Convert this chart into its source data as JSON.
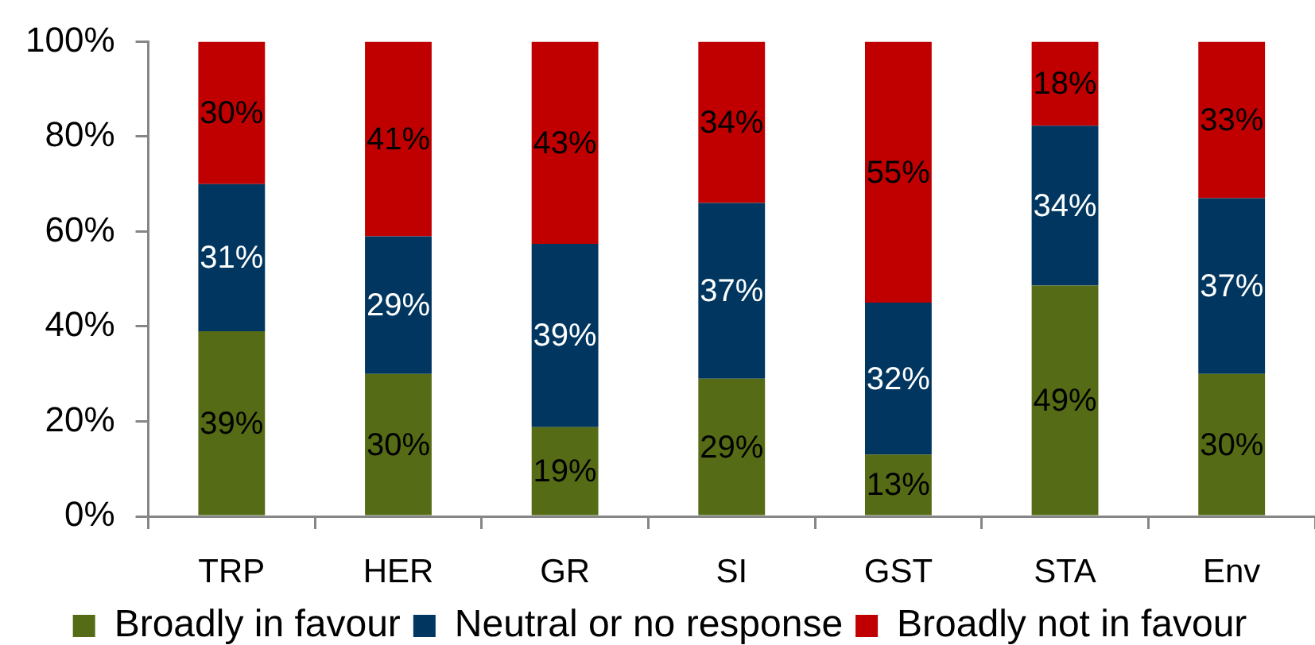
{
  "chart_data": {
    "type": "bar",
    "stacked": true,
    "categories": [
      "TRP",
      "HER",
      "GR",
      "SI",
      "GST",
      "STA",
      "Env"
    ],
    "series": [
      {
        "name": "Broadly in favour",
        "color": "#556b15",
        "values": [
          39,
          30,
          18.8,
          29,
          13,
          48.6,
          30
        ],
        "value_labels": [
          "39%",
          "30%",
          "19%",
          "29%",
          "13%",
          "49%",
          "30%"
        ]
      },
      {
        "name": "Neutral or no response",
        "color": "#00365f",
        "values": [
          31,
          29,
          38.6,
          37,
          32,
          33.7,
          37
        ],
        "value_labels": [
          "31%",
          "29%",
          "39%",
          "37%",
          "32%",
          "34%",
          "37%"
        ]
      },
      {
        "name": "Broadly not in favour",
        "color": "#c00000",
        "values": [
          30,
          41,
          42.6,
          34,
          55,
          17.7,
          33
        ],
        "value_labels": [
          "30%",
          "41%",
          "43%",
          "34%",
          "55%",
          "18%",
          "33%"
        ]
      }
    ],
    "ylim": [
      0,
      100
    ],
    "yticks": [
      {
        "value": 0,
        "label": "0%"
      },
      {
        "value": 20,
        "label": "20%"
      },
      {
        "value": 40,
        "label": "40%"
      },
      {
        "value": 60,
        "label": "60%"
      },
      {
        "value": 80,
        "label": "80%"
      },
      {
        "value": 100,
        "label": "100%"
      }
    ],
    "legend": "bottom"
  }
}
